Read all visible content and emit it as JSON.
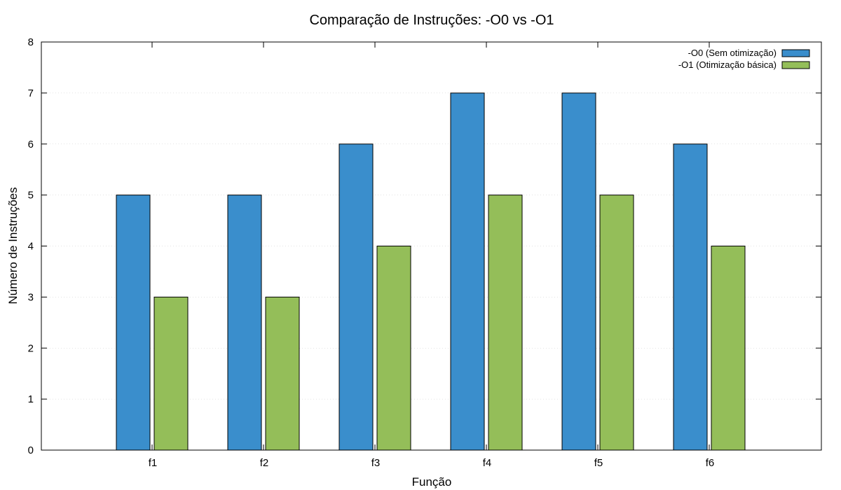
{
  "chart_data": {
    "type": "bar",
    "title": "Comparação de Instruções: -O0 vs -O1",
    "xlabel": "Função",
    "ylabel": "Número de Instruções",
    "categories": [
      "f1",
      "f2",
      "f3",
      "f4",
      "f5",
      "f6"
    ],
    "series": [
      {
        "name": "-O0 (Sem otimização)",
        "values": [
          5,
          5,
          6,
          7,
          7,
          6
        ],
        "color": "#3a8ecc"
      },
      {
        "name": "-O1 (Otimização básica)",
        "values": [
          3,
          3,
          4,
          5,
          5,
          4
        ],
        "color": "#94be59"
      }
    ],
    "ylim": [
      0,
      8
    ],
    "yticks": [
      0,
      1,
      2,
      3,
      4,
      5,
      6,
      7,
      8
    ],
    "grid": true,
    "legend_position": "top-right"
  }
}
